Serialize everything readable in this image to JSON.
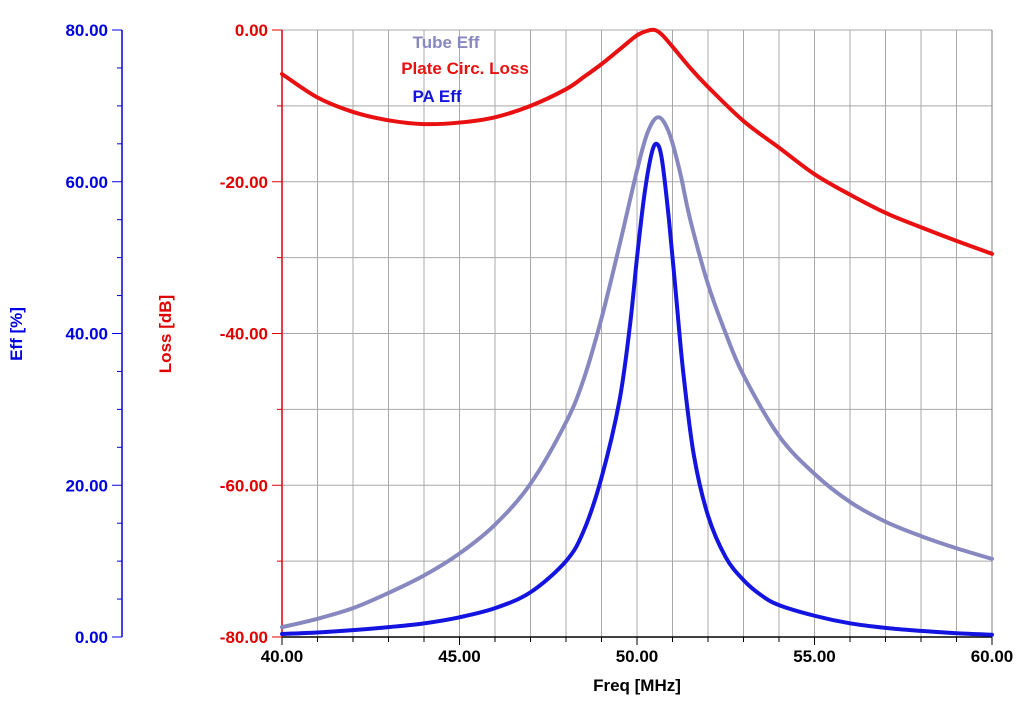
{
  "colors": {
    "eff_axis": "#0000e0",
    "loss_axis": "#e00000",
    "tube_eff": "#8888c0",
    "plate_loss": "#e81010",
    "pa_eff": "#1414e0",
    "grid": "#a8a8a8"
  },
  "chart_data": {
    "type": "line",
    "xlabel": "Freq [MHz]",
    "ylabel_left": "Eff [%]",
    "ylabel_right": "Loss [dB]",
    "xlim": [
      40,
      60
    ],
    "ylim_eff": [
      0,
      80
    ],
    "ylim_loss": [
      -80,
      0
    ],
    "x_ticks": [
      "40.00",
      "45.00",
      "50.00",
      "55.00",
      "60.00"
    ],
    "eff_ticks": [
      "0.00",
      "20.00",
      "40.00",
      "60.00",
      "80.00"
    ],
    "loss_ticks": [
      "-80.00",
      "-60.00",
      "-40.00",
      "-20.00",
      "0.00"
    ],
    "grid": true,
    "legend_position": "top-center",
    "series": [
      {
        "name": "Tube Eff",
        "axis": "eff",
        "x": [
          40,
          41,
          42,
          43,
          44,
          45,
          46,
          47,
          48,
          48.5,
          49,
          49.5,
          50,
          50.3,
          50.6,
          50.9,
          51.2,
          51.5,
          52,
          52.5,
          53,
          54,
          55,
          56,
          57,
          58,
          59,
          60
        ],
        "y": [
          1.3,
          2.4,
          3.8,
          5.8,
          8.1,
          11.0,
          14.8,
          20.2,
          28.3,
          34.0,
          42.0,
          51.5,
          61.5,
          66.5,
          68.5,
          66.5,
          61.5,
          55.0,
          46.5,
          40.0,
          34.5,
          26.5,
          21.5,
          17.8,
          15.2,
          13.3,
          11.7,
          10.3
        ]
      },
      {
        "name": "Plate Circ. Loss",
        "axis": "loss",
        "x": [
          40,
          41,
          42,
          43,
          44,
          45,
          46,
          47,
          48,
          48.5,
          49,
          49.5,
          50,
          50.3,
          50.5,
          50.7,
          51,
          51.5,
          52,
          53,
          54,
          55,
          56,
          57,
          58,
          59,
          60
        ],
        "y": [
          -5.8,
          -8.9,
          -10.8,
          -11.9,
          -12.4,
          -12.2,
          -11.5,
          -10.0,
          -7.8,
          -6.2,
          -4.5,
          -2.6,
          -0.7,
          -0.1,
          0.0,
          -0.6,
          -2.2,
          -5.0,
          -7.5,
          -12.0,
          -15.5,
          -19.0,
          -21.7,
          -24.1,
          -26.0,
          -27.8,
          -29.5
        ]
      },
      {
        "name": "PA Eff",
        "axis": "eff",
        "x": [
          40,
          41,
          42,
          43,
          44,
          45,
          46,
          47,
          48,
          48.5,
          49,
          49.5,
          49.8,
          50,
          50.2,
          50.4,
          50.55,
          50.7,
          50.9,
          51.1,
          51.3,
          51.6,
          52,
          52.5,
          53,
          53.5,
          54,
          55,
          56,
          57,
          58,
          59,
          60
        ],
        "y": [
          0.4,
          0.6,
          0.9,
          1.3,
          1.8,
          2.6,
          3.8,
          5.9,
          10.0,
          14.0,
          21.0,
          31.0,
          41.0,
          50.0,
          58.0,
          63.5,
          65.0,
          63.0,
          55.0,
          45.0,
          35.0,
          24.0,
          16.0,
          10.5,
          7.5,
          5.5,
          4.2,
          2.8,
          1.8,
          1.2,
          0.8,
          0.5,
          0.3
        ]
      }
    ]
  }
}
